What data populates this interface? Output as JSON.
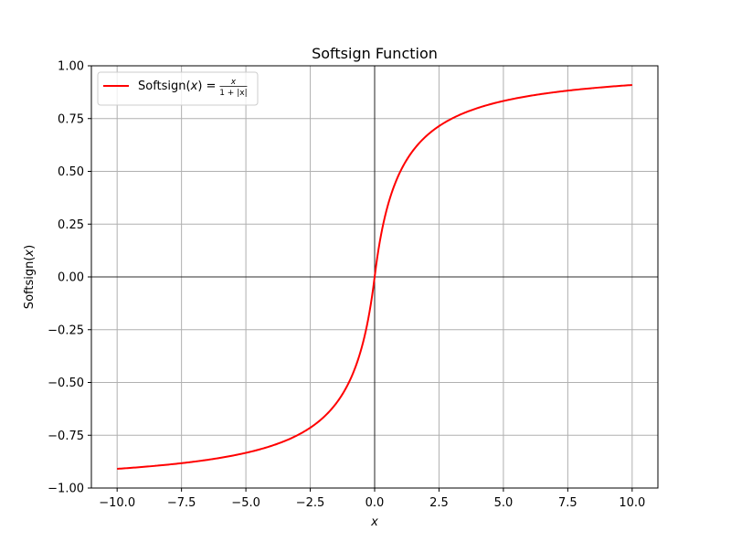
{
  "chart_data": {
    "type": "line",
    "title": "Softsign Function",
    "xlabel": "x",
    "ylabel": "Softsign(x)",
    "xlim": [
      -11,
      11
    ],
    "ylim": [
      -1.0,
      1.0
    ],
    "grid": true,
    "legend_position": "top-left",
    "x_ticks": [
      -10.0,
      -7.5,
      -5.0,
      -2.5,
      0.0,
      2.5,
      5.0,
      7.5,
      10.0
    ],
    "x_tick_labels": [
      "−10.0",
      "−7.5",
      "−5.0",
      "−2.5",
      "0.0",
      "2.5",
      "5.0",
      "7.5",
      "10.0"
    ],
    "y_ticks": [
      -1.0,
      -0.75,
      -0.5,
      -0.25,
      0.0,
      0.25,
      0.5,
      0.75,
      1.0
    ],
    "y_tick_labels": [
      "−1.00",
      "−0.75",
      "−0.50",
      "−0.25",
      "0.00",
      "0.25",
      "0.50",
      "0.75",
      "1.00"
    ],
    "series": [
      {
        "name": "Softsign(x) = x / (1 + |x|)",
        "color": "#ff0000",
        "x": [
          -10,
          -9,
          -8,
          -7,
          -6,
          -5,
          -4,
          -3,
          -2.5,
          -2,
          -1.5,
          -1.25,
          -1,
          -0.8,
          -0.6,
          -0.5,
          -0.4,
          -0.3,
          -0.2,
          -0.1,
          0,
          0.1,
          0.2,
          0.3,
          0.4,
          0.5,
          0.6,
          0.8,
          1,
          1.25,
          1.5,
          2,
          2.5,
          3,
          4,
          5,
          6,
          7,
          8,
          9,
          10
        ],
        "y": [
          -0.909,
          -0.9,
          -0.889,
          -0.875,
          -0.857,
          -0.833,
          -0.8,
          -0.75,
          -0.714,
          -0.667,
          -0.6,
          -0.556,
          -0.5,
          -0.444,
          -0.375,
          -0.333,
          -0.286,
          -0.231,
          -0.167,
          -0.091,
          0,
          0.091,
          0.167,
          0.231,
          0.286,
          0.333,
          0.375,
          0.444,
          0.5,
          0.556,
          0.6,
          0.667,
          0.714,
          0.75,
          0.8,
          0.833,
          0.857,
          0.875,
          0.889,
          0.9,
          0.909
        ]
      }
    ],
    "reference_lines": {
      "horizontal_at_y": 0,
      "vertical_at_x": 0,
      "color": "#000000"
    },
    "legend": {
      "label_prefix": "Softsign(",
      "label_var": "x",
      "label_mid": ") =",
      "frac_num": "x",
      "frac_den": "1 + |x|"
    }
  }
}
